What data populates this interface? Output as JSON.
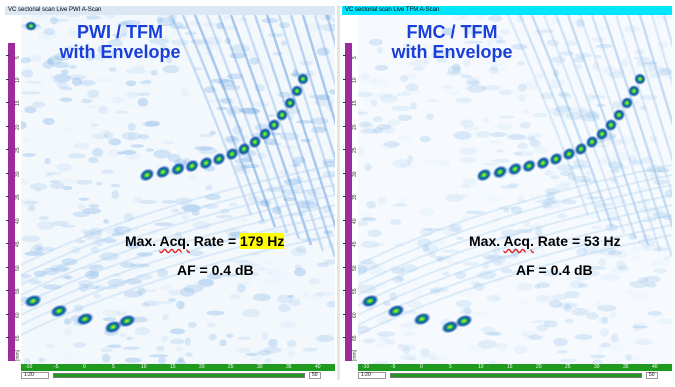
{
  "left_panel": {
    "window_title": "VC sectorial scan Live PWI A-Scan",
    "mode_title_line1": "PWI / TFM",
    "mode_title_line2": "with Envelope",
    "rate_label_prefix": "Max.",
    "rate_label_acq": "Acq.",
    "rate_label_mid": " Rate = ",
    "rate_value": "179 Hz",
    "af_label": "AF = 0.4 dB",
    "zoom_value": "1:20",
    "slider_end_label": "50",
    "highlight_color": "#ffff00"
  },
  "right_panel": {
    "window_title": "VC sectorial scan Live TFM A-Scan",
    "mode_title_line1": "FMC / TFM",
    "mode_title_line2": "with Envelope",
    "rate_label_prefix": "Max.",
    "rate_label_acq": "Acq.",
    "rate_label_mid": " Rate = ",
    "rate_value": "53 Hz",
    "af_label": "AF = 0.4 dB",
    "zoom_value": "1:20",
    "slider_end_label": "50"
  },
  "depth_ticks": [
    "5",
    "10",
    "15",
    "20",
    "25",
    "30",
    "35",
    "40",
    "45",
    "50",
    "55",
    "60",
    "65"
  ],
  "depth_unit": "[mm]",
  "bottom_axis_labels": [
    "-10",
    "-5",
    "0",
    "5",
    "10",
    "15",
    "20",
    "25",
    "30",
    "35",
    "40"
  ],
  "colors": {
    "title_blue": "#1a3fd8",
    "depth_bar": "#9c2c9c",
    "axis_green": "#1f9a1f",
    "left_titlebar": "#dbe7f5",
    "right_titlebar": "#00e5ff"
  }
}
